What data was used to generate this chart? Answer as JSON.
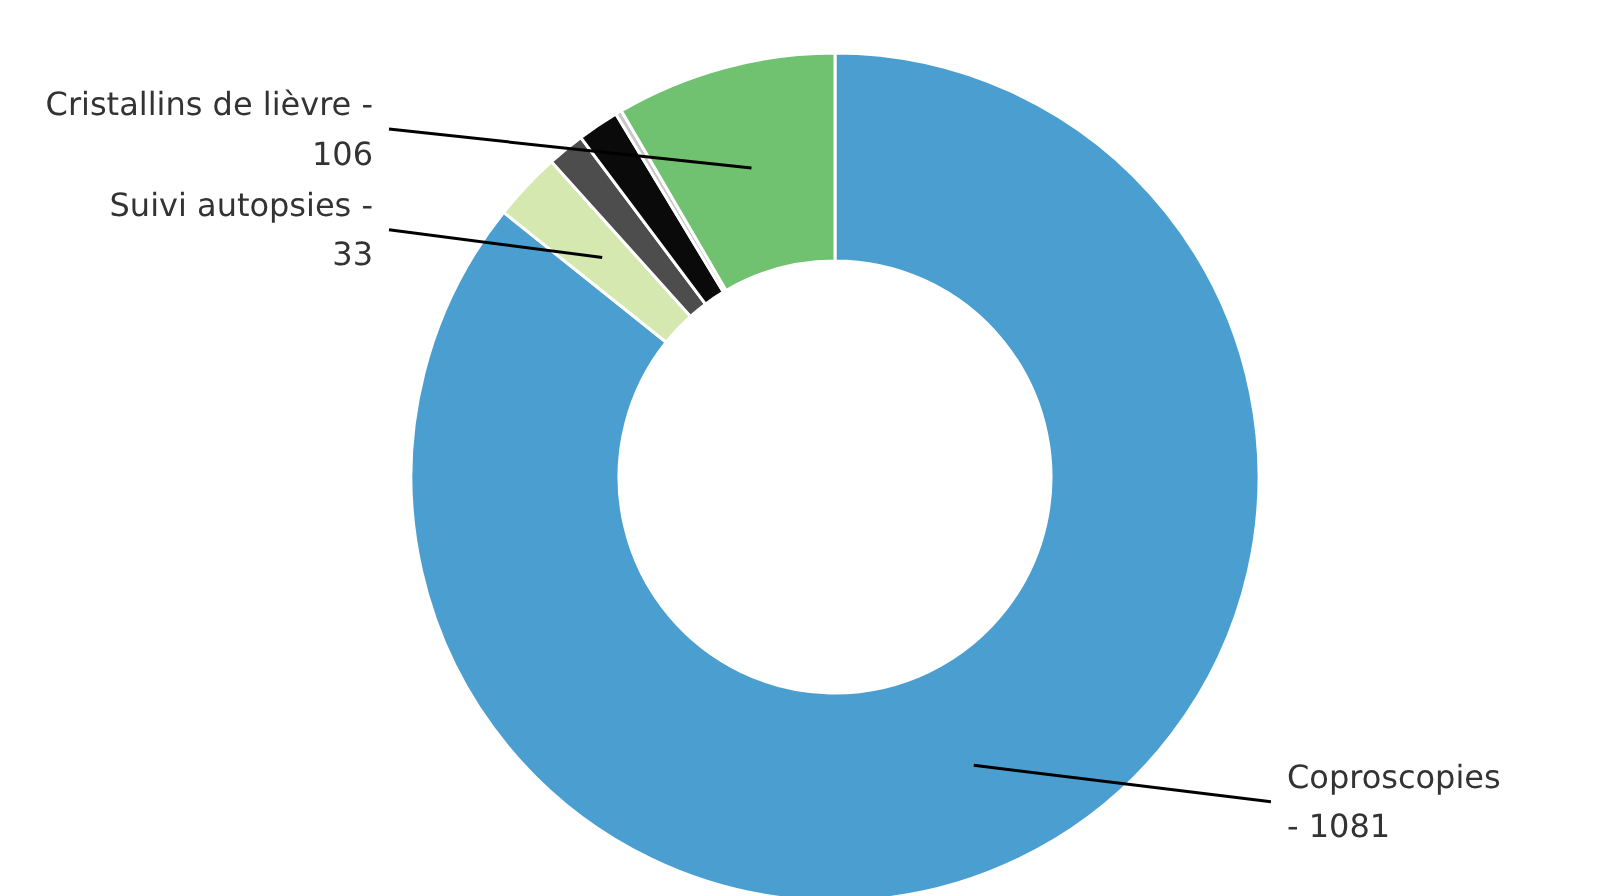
{
  "chart_data": {
    "type": "donut",
    "categories": [
      "Coproscopies -",
      "Suivi autopsies -",
      null,
      null,
      null,
      "Cristallins de lièvre -"
    ],
    "values": [
      1081,
      33,
      18,
      20,
      3,
      106
    ],
    "value_labels": [
      "1081",
      "33",
      null,
      null,
      null,
      "106"
    ],
    "colors": [
      "#4a9fd0",
      "#d4e8b0",
      "#4d4d4d",
      "#0a0a0a",
      "#c8c8c8",
      "#70c170"
    ]
  }
}
